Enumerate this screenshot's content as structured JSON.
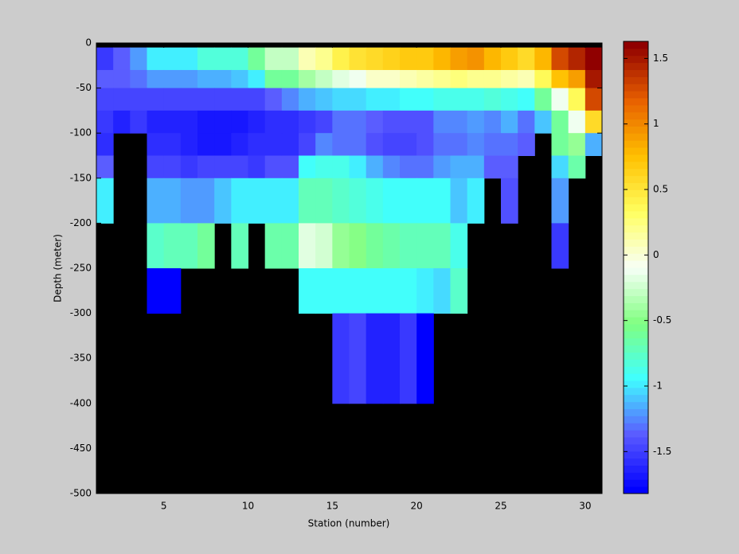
{
  "chart_data": {
    "type": "heatmap",
    "xlabel": "Station (number)",
    "ylabel": "Depth (meter)",
    "xlim": [
      1,
      31
    ],
    "xticks": [
      5,
      10,
      15,
      20,
      25,
      30
    ],
    "ylim": [
      -500,
      0
    ],
    "yticks": [
      -500,
      -450,
      -400,
      -350,
      -300,
      -250,
      -200,
      -150,
      -100,
      -50,
      0
    ],
    "x_edges": [
      1,
      2,
      3,
      4,
      5,
      6,
      7,
      8,
      9,
      10,
      11,
      12,
      13,
      14,
      15,
      16,
      17,
      18,
      19,
      20,
      21,
      22,
      23,
      24,
      25,
      26,
      27,
      28,
      29,
      30,
      31
    ],
    "y_edges": [
      -5,
      -30,
      -50,
      -75,
      -100,
      -125,
      -150,
      -200,
      -250,
      -300,
      -400
    ],
    "z": [
      [
        -1.5,
        -1.35,
        -1.2,
        -1.0,
        -1.0,
        -1.0,
        -0.8,
        -0.8,
        -0.8,
        -0.6,
        -0.3,
        -0.3,
        0.1,
        0.2,
        0.4,
        0.5,
        0.6,
        0.65,
        0.7,
        0.7,
        0.8,
        0.9,
        0.95,
        0.8,
        0.7,
        0.6,
        0.8,
        1.3,
        1.45,
        1.6
      ],
      [
        -1.35,
        -1.35,
        -1.3,
        -1.2,
        -1.2,
        -1.2,
        -1.15,
        -1.15,
        -1.1,
        -1.0,
        -0.6,
        -0.6,
        -0.4,
        -0.3,
        -0.15,
        -0.1,
        0.05,
        0.05,
        0.1,
        0.15,
        0.2,
        0.25,
        0.2,
        0.2,
        0.15,
        0.1,
        0.35,
        0.75,
        0.9,
        1.5
      ],
      [
        -1.45,
        -1.45,
        -1.45,
        -1.45,
        -1.45,
        -1.45,
        -1.45,
        -1.45,
        -1.45,
        -1.45,
        -1.35,
        -1.25,
        -1.15,
        -1.1,
        -1.05,
        -1.05,
        -1.0,
        -1.0,
        -0.95,
        -0.95,
        -0.9,
        -0.85,
        -0.85,
        -0.8,
        -0.85,
        -0.95,
        -0.6,
        -0.1,
        0.35,
        1.3
      ],
      [
        -1.55,
        -1.65,
        -1.55,
        -1.65,
        -1.65,
        -1.65,
        -1.7,
        -1.7,
        -1.7,
        -1.65,
        -1.6,
        -1.6,
        -1.5,
        -1.45,
        -1.3,
        -1.3,
        -1.35,
        -1.4,
        -1.4,
        -1.4,
        -1.25,
        -1.25,
        -1.2,
        -1.25,
        -1.15,
        -1.3,
        -1.1,
        -0.6,
        -0.1,
        0.6
      ],
      [
        -1.6,
        null,
        null,
        -1.6,
        -1.6,
        -1.65,
        -1.7,
        -1.7,
        -1.65,
        -1.6,
        -1.6,
        -1.6,
        -1.45,
        -1.25,
        -1.3,
        -1.3,
        -1.4,
        -1.45,
        -1.45,
        -1.4,
        -1.3,
        -1.3,
        -1.25,
        -1.3,
        -1.3,
        -1.35,
        null,
        -0.6,
        -0.45,
        -1.15
      ],
      [
        -1.35,
        null,
        null,
        -1.45,
        -1.45,
        -1.5,
        -1.45,
        -1.45,
        -1.45,
        -1.5,
        -1.4,
        -1.4,
        -0.95,
        -0.85,
        -0.85,
        -1.0,
        -1.15,
        -1.25,
        -1.3,
        -1.3,
        -1.2,
        -1.15,
        -1.15,
        -1.35,
        -1.35,
        null,
        null,
        -1.05,
        -0.65,
        null
      ],
      [
        -1.0,
        null,
        null,
        -1.15,
        -1.15,
        -1.2,
        -1.2,
        -1.1,
        -1.0,
        -1.0,
        -1.0,
        -1.0,
        -0.7,
        -0.7,
        -0.75,
        -0.8,
        -0.9,
        -0.95,
        -0.95,
        -0.95,
        -0.95,
        -1.1,
        -1.0,
        null,
        -1.4,
        null,
        null,
        -1.2,
        null,
        null
      ],
      [
        null,
        null,
        null,
        -0.75,
        -0.7,
        -0.7,
        -0.6,
        null,
        -0.7,
        null,
        -0.65,
        -0.65,
        -0.2,
        -0.25,
        -0.45,
        -0.5,
        -0.6,
        -0.65,
        -0.7,
        -0.7,
        -0.7,
        -0.85,
        null,
        null,
        null,
        null,
        null,
        -1.5,
        null,
        null
      ],
      [
        null,
        null,
        null,
        -1.8,
        -1.8,
        null,
        null,
        null,
        null,
        null,
        null,
        null,
        -0.95,
        -0.95,
        -0.95,
        -0.95,
        -0.95,
        -0.95,
        -0.95,
        -1.0,
        -1.05,
        -0.75,
        null,
        null,
        null,
        null,
        null,
        null,
        null,
        null
      ],
      [
        null,
        null,
        null,
        null,
        null,
        null,
        null,
        null,
        null,
        null,
        null,
        null,
        null,
        null,
        -1.5,
        -1.45,
        -1.65,
        -1.65,
        -1.55,
        -1.8,
        null,
        null,
        null,
        null,
        null,
        null,
        null,
        null,
        null,
        null
      ]
    ],
    "clim": [
      -1.82,
      1.63
    ],
    "cticks": [
      -1.5,
      -1,
      -0.5,
      0,
      0.5,
      1,
      1.5
    ],
    "colormap": [
      "#0000ff",
      "#5a5aff",
      "#40ffff",
      "#80ff80",
      "#f8fff8",
      "#ffff60",
      "#ffc000",
      "#e86000",
      "#900000"
    ],
    "colormap_levels": 64,
    "missing_color": "#000000"
  }
}
